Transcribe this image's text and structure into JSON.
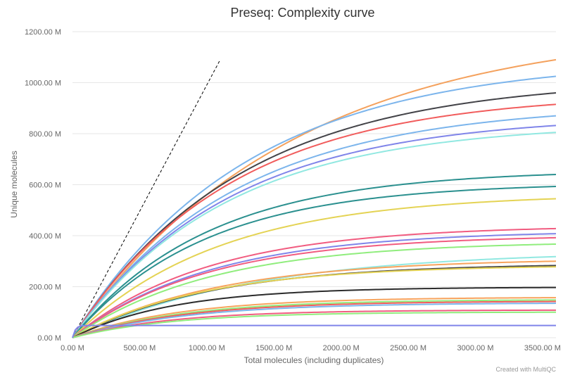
{
  "chart_data": {
    "type": "line",
    "title": "Preseq: Complexity curve",
    "xlabel": "Total molecules (including duplicates)",
    "ylabel": "Unique molecules",
    "xlim": [
      0,
      3600
    ],
    "ylim": [
      0,
      1200
    ],
    "x_ticks": [
      "0.00 M",
      "500.00 M",
      "1000.00 M",
      "1500.00 M",
      "2000.00 M",
      "2500.00 M",
      "3000.00 M",
      "3500.00 M"
    ],
    "y_ticks": [
      "0.00 M",
      "200.00 M",
      "400.00 M",
      "600.00 M",
      "800.00 M",
      "1000.00 M",
      "1200.00 M"
    ],
    "grid": true,
    "reference_line": {
      "x": [
        0,
        1100
      ],
      "y": [
        0,
        1090
      ]
    },
    "series": [
      {
        "color": "#f4a15d",
        "y_at_end": 1090,
        "y_at_3000": 1030
      },
      {
        "color": "#7cb5ec",
        "y_at_end": 1025,
        "y_at_3000": 985
      },
      {
        "color": "#434348",
        "y_at_end": 960,
        "y_at_3000": 925
      },
      {
        "color": "#f15c5c",
        "y_at_end": 915,
        "y_at_3000": 885
      },
      {
        "color": "#7cb5ec",
        "y_at_end": 870,
        "y_at_3000": 840
      },
      {
        "color": "#8085e9",
        "y_at_end": 832,
        "y_at_3000": 805
      },
      {
        "color": "#91e8e1",
        "y_at_end": 805,
        "y_at_3000": 780
      },
      {
        "color": "#2b908f",
        "y_at_end": 640,
        "y_at_3000": 625
      },
      {
        "color": "#2b908f",
        "y_at_end": 593,
        "y_at_3000": 580
      },
      {
        "color": "#e4d354",
        "y_at_end": 545,
        "y_at_3000": 530
      },
      {
        "color": "#f15c80",
        "y_at_end": 428,
        "y_at_3000": 418
      },
      {
        "color": "#8085e9",
        "y_at_end": 408,
        "y_at_3000": 398
      },
      {
        "color": "#f15c80",
        "y_at_end": 392,
        "y_at_3000": 383
      },
      {
        "color": "#90ed7d",
        "y_at_end": 367,
        "y_at_3000": 358
      },
      {
        "color": "#91e8e1",
        "y_at_end": 318,
        "y_at_3000": 305
      },
      {
        "color": "#f7a35c",
        "y_at_end": 300,
        "y_at_3000": 292
      },
      {
        "color": "#434348",
        "y_at_end": 283,
        "y_at_3000": 276
      },
      {
        "color": "#e4d354",
        "y_at_end": 278,
        "y_at_3000": 272
      },
      {
        "color": "#2b2b2b",
        "y_at_end": 197,
        "y_at_3000": 195
      },
      {
        "color": "#f7a35c",
        "y_at_end": 157,
        "y_at_3000": 155
      },
      {
        "color": "#90ed7d",
        "y_at_end": 148,
        "y_at_3000": 146
      },
      {
        "color": "#f15c5c",
        "y_at_end": 142,
        "y_at_3000": 140
      },
      {
        "color": "#7cb5ec",
        "y_at_end": 135,
        "y_at_3000": 133
      },
      {
        "color": "#f15c80",
        "y_at_end": 108,
        "y_at_3000": 107
      },
      {
        "color": "#90ed7d",
        "y_at_end": 100,
        "y_at_3000": 99
      },
      {
        "color": "#8085e9",
        "y_at_end": 48,
        "y_at_3000": 48
      }
    ]
  },
  "credit": "Created with MultiQC"
}
